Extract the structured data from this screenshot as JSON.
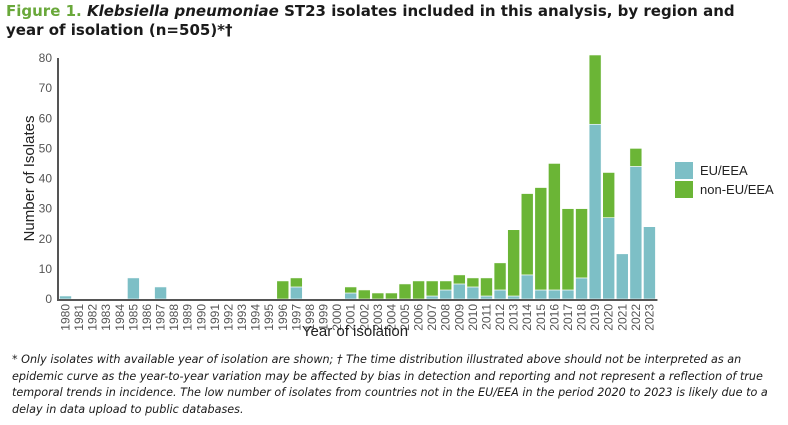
{
  "figure": {
    "label": "Figure 1.",
    "title_italic": "Klebsiella pneumoniae",
    "title_rest": " ST23 isolates included in this analysis, by region and year of isolation (n=505)*†",
    "footnote": "* Only isolates with available year of isolation are shown; † The time distribution illustrated above should not be interpreted as an epidemic curve as the year-to-year variation may be affected by bias in detection and reporting and not represent a reflection of true temporal trends in incidence. The low number of isolates from countries not in the EU/EEA in the period 2020 to 2023 is likely due to a delay in data upload to public databases."
  },
  "colors": {
    "eu": "#7dbfc6",
    "non_eu": "#6bb536",
    "axis": "#555555"
  },
  "chart_data": {
    "type": "bar",
    "stacked": true,
    "title": "Klebsiella pneumoniae ST23 isolates included in this analysis, by region and year of isolation (n=505)*†",
    "xlabel": "Year of isolation",
    "ylabel": "Number of Isolates",
    "ylim": [
      0,
      80
    ],
    "yticks": [
      0,
      10,
      20,
      30,
      40,
      50,
      60,
      70,
      80
    ],
    "grid": false,
    "legend_position": "right",
    "categories": [
      "1980",
      "1981",
      "1982",
      "1983",
      "1984",
      "1985",
      "1986",
      "1987",
      "1988",
      "1989",
      "1990",
      "1991",
      "1992",
      "1993",
      "1994",
      "1995",
      "1996",
      "1997",
      "1998",
      "1999",
      "2000",
      "2001",
      "2002",
      "2003",
      "2004",
      "2005",
      "2006",
      "2007",
      "2008",
      "2009",
      "2010",
      "2011",
      "2012",
      "2013",
      "2014",
      "2015",
      "2016",
      "2017",
      "2018",
      "2019",
      "2020",
      "2021",
      "2022",
      "2023"
    ],
    "series": [
      {
        "name": "EU/EEA",
        "values": [
          1,
          0,
          0,
          0,
          0,
          7,
          0,
          4,
          0,
          0,
          0,
          0,
          0,
          0,
          0,
          0,
          0,
          4,
          0,
          0,
          0,
          2,
          0,
          0,
          0,
          0,
          0,
          1,
          3,
          5,
          4,
          1,
          3,
          1,
          8,
          3,
          3,
          3,
          7,
          58,
          27,
          15,
          44,
          24
        ]
      },
      {
        "name": "non-EU/EEA",
        "values": [
          0,
          0,
          0,
          0,
          0,
          0,
          0,
          0,
          0,
          0,
          0,
          0,
          0,
          0,
          0,
          0,
          6,
          3,
          0,
          0,
          0,
          2,
          3,
          2,
          2,
          5,
          6,
          5,
          3,
          3,
          3,
          6,
          9,
          22,
          27,
          34,
          42,
          27,
          23,
          23,
          15,
          0,
          6,
          0
        ]
      }
    ]
  }
}
